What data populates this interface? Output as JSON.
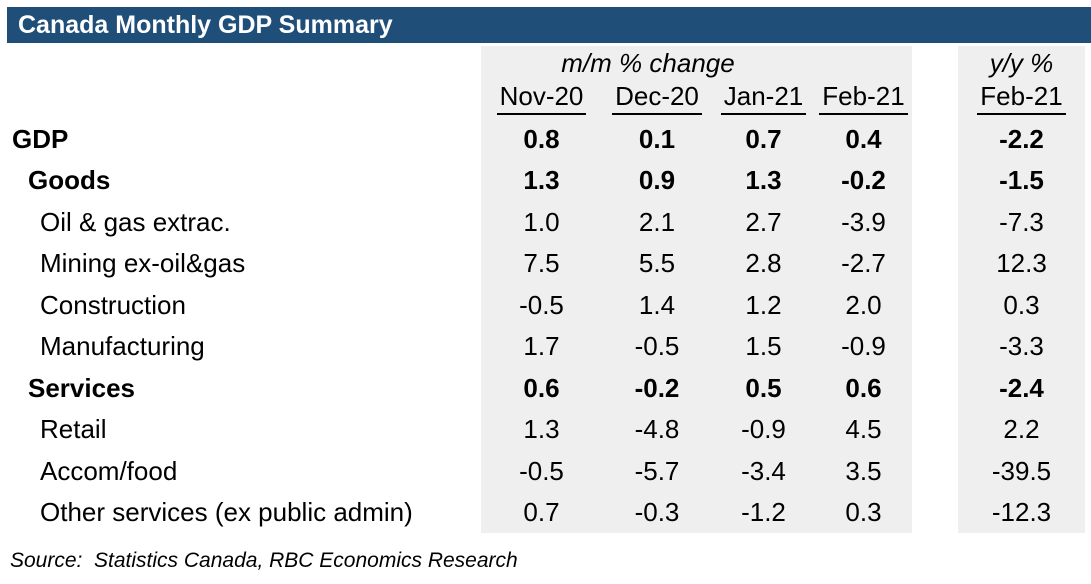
{
  "title": "Canada Monthly GDP Summary",
  "colors": {
    "title_bar_bg": "#1f4e79",
    "title_bar_text": "#ffffff",
    "column_shade_bg": "#efefef",
    "body_text": "#000000"
  },
  "table": {
    "group_headers": {
      "mm": "m/m % change",
      "yy": "y/y %"
    },
    "columns": [
      "Nov-20",
      "Dec-20",
      "Jan-21",
      "Feb-21"
    ],
    "yy_column": "Feb-21",
    "rows": [
      {
        "label": "GDP",
        "values": [
          "0.8",
          "0.1",
          "0.7",
          "0.4"
        ],
        "yoy": "-2.2"
      },
      {
        "label": "Goods",
        "values": [
          "1.3",
          "0.9",
          "1.3",
          "-0.2"
        ],
        "yoy": "-1.5"
      },
      {
        "label": "Oil & gas extrac.",
        "values": [
          "1.0",
          "2.1",
          "2.7",
          "-3.9"
        ],
        "yoy": "-7.3"
      },
      {
        "label": "Mining ex-oil&gas",
        "values": [
          "7.5",
          "5.5",
          "2.8",
          "-2.7"
        ],
        "yoy": "12.3"
      },
      {
        "label": "Construction",
        "values": [
          "-0.5",
          "1.4",
          "1.2",
          "2.0"
        ],
        "yoy": "0.3"
      },
      {
        "label": "Manufacturing",
        "values": [
          "1.7",
          "-0.5",
          "1.5",
          "-0.9"
        ],
        "yoy": "-3.3"
      },
      {
        "label": "Services",
        "values": [
          "0.6",
          "-0.2",
          "0.5",
          "0.6"
        ],
        "yoy": "-2.4"
      },
      {
        "label": "Retail",
        "values": [
          "1.3",
          "-4.8",
          "-0.9",
          "4.5"
        ],
        "yoy": "2.2"
      },
      {
        "label": "Accom/food",
        "values": [
          "-0.5",
          "-5.7",
          "-3.4",
          "3.5"
        ],
        "yoy": "-39.5"
      },
      {
        "label": "Other services (ex public admin)",
        "values": [
          "0.7",
          "-0.3",
          "-1.2",
          "0.3"
        ],
        "yoy": "-12.3"
      }
    ]
  },
  "source": "Source:  Statistics Canada, RBC Economics Research",
  "chart_data": {
    "type": "table",
    "title": "Canada Monthly GDP Summary",
    "column_groups": [
      {
        "label": "m/m % change",
        "columns": [
          "Nov-20",
          "Dec-20",
          "Jan-21",
          "Feb-21"
        ]
      },
      {
        "label": "y/y %",
        "columns": [
          "Feb-21"
        ]
      }
    ],
    "rows": [
      {
        "label": "GDP",
        "level": 0,
        "bold": true,
        "mm": [
          0.8,
          0.1,
          0.7,
          0.4
        ],
        "yy": -2.2
      },
      {
        "label": "Goods",
        "level": 1,
        "bold": true,
        "mm": [
          1.3,
          0.9,
          1.3,
          -0.2
        ],
        "yy": -1.5
      },
      {
        "label": "Oil & gas extrac.",
        "level": 2,
        "bold": false,
        "mm": [
          1.0,
          2.1,
          2.7,
          -3.9
        ],
        "yy": -7.3
      },
      {
        "label": "Mining ex-oil&gas",
        "level": 2,
        "bold": false,
        "mm": [
          7.5,
          5.5,
          2.8,
          -2.7
        ],
        "yy": 12.3
      },
      {
        "label": "Construction",
        "level": 2,
        "bold": false,
        "mm": [
          -0.5,
          1.4,
          1.2,
          2.0
        ],
        "yy": 0.3
      },
      {
        "label": "Manufacturing",
        "level": 2,
        "bold": false,
        "mm": [
          1.7,
          -0.5,
          1.5,
          -0.9
        ],
        "yy": -3.3
      },
      {
        "label": "Services",
        "level": 1,
        "bold": true,
        "mm": [
          0.6,
          -0.2,
          0.5,
          0.6
        ],
        "yy": -2.4
      },
      {
        "label": "Retail",
        "level": 2,
        "bold": false,
        "mm": [
          1.3,
          -4.8,
          -0.9,
          4.5
        ],
        "yy": 2.2
      },
      {
        "label": "Accom/food",
        "level": 2,
        "bold": false,
        "mm": [
          -0.5,
          -5.7,
          -3.4,
          3.5
        ],
        "yy": -39.5
      },
      {
        "label": "Other services (ex public admin)",
        "level": 2,
        "bold": false,
        "mm": [
          0.7,
          -0.3,
          -1.2,
          0.3
        ],
        "yy": -12.3
      }
    ],
    "source": "Statistics Canada, RBC Economics Research"
  }
}
